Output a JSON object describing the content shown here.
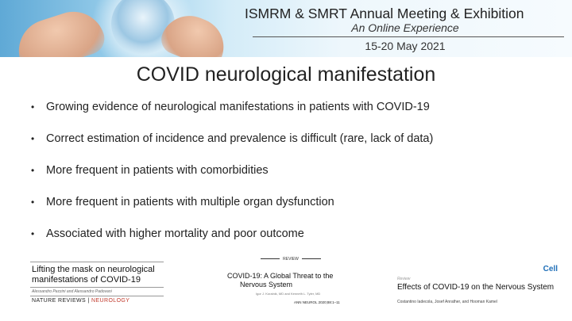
{
  "banner": {
    "title_bold": "ISMRM & SMRT",
    "title_rest": " Annual Meeting & Exhibition",
    "subtitle": "An Online Experience",
    "date": "15-20 May 2021"
  },
  "slide": {
    "title": "COVID neurological manifestation",
    "bullets": [
      "Growing evidence of neurological manifestations in patients with COVID-19",
      "Correct estimation of incidence and prevalence is difficult (rare, lack of data)",
      "More frequent in patients with comorbidities",
      "More frequent in patients with multiple organ dysfunction",
      "Associated with higher mortality and poor outcome"
    ],
    "bullet_glyph": "•"
  },
  "papers": {
    "nature": {
      "title_line1": "Lifting the mask on neurological",
      "title_line2": "manifestations of COVID-19",
      "authors": "Alessandro Pezzini and Alessandro Padovani",
      "journal_a": "NATURE REVIEWS",
      "journal_sep": " | ",
      "journal_b": "NEUROLOGY"
    },
    "annals": {
      "section": "REVIEW",
      "title_line1": "COVID-19: A Global Threat to the",
      "title_line2": "Nervous System",
      "authors": "Igor J. Koralnik, MD and Kenneth L. Tyler, MD",
      "citation": "ANN NEUROL 2020;88:1–11"
    },
    "cell": {
      "logo": "Cell",
      "section": "Review",
      "title": "Effects of COVID-19 on the Nervous System",
      "authors": "Costantino Iadecola, Josef Anrather, and Hooman Kamel"
    }
  }
}
